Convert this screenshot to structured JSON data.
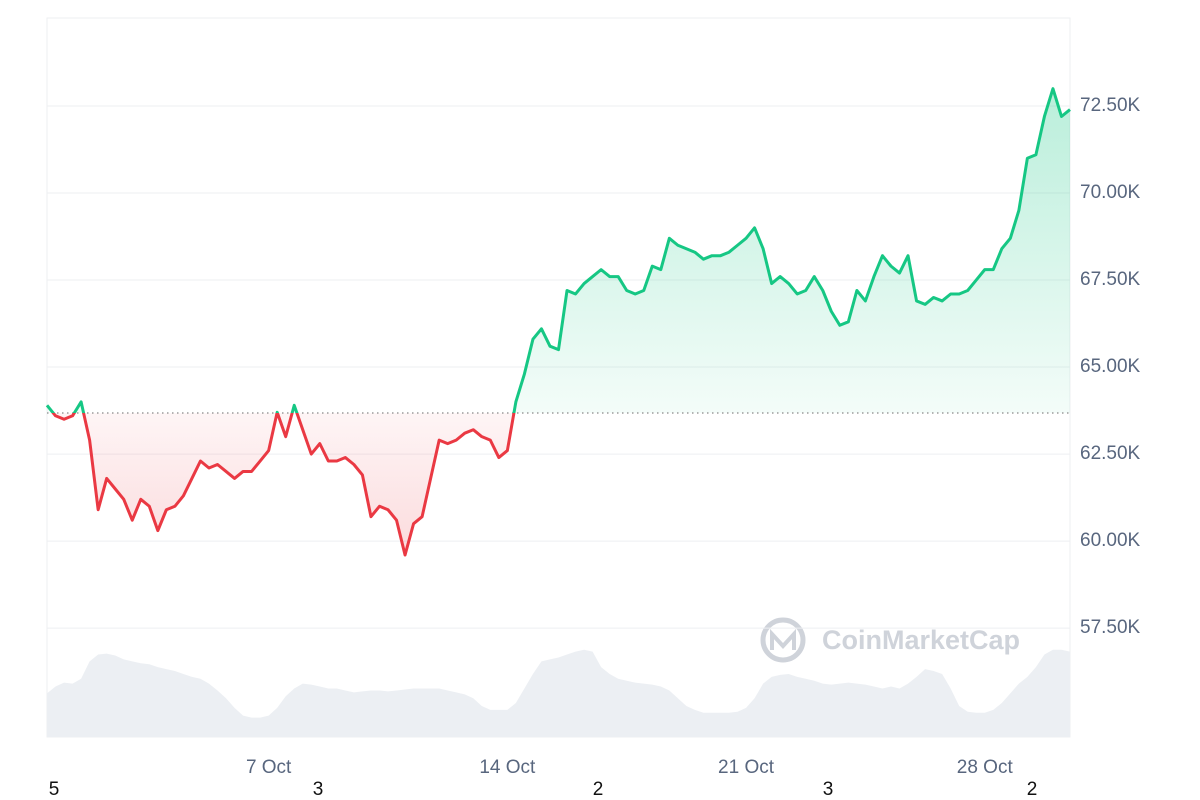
{
  "chart_data": {
    "type": "line",
    "categories": [
      null,
      null,
      null,
      null,
      null,
      null,
      null,
      null,
      null,
      null,
      null,
      null,
      null,
      null,
      null,
      null,
      null,
      null,
      null,
      null,
      null,
      null,
      null,
      null,
      null,
      null,
      "7 Oct",
      null,
      null,
      null,
      null,
      null,
      null,
      null,
      null,
      null,
      null,
      null,
      null,
      null,
      null,
      null,
      null,
      null,
      null,
      null,
      null,
      null,
      null,
      null,
      null,
      null,
      null,
      null,
      "14 Oct",
      null,
      null,
      null,
      null,
      null,
      null,
      null,
      null,
      null,
      null,
      null,
      null,
      null,
      null,
      null,
      null,
      null,
      null,
      null,
      null,
      null,
      null,
      null,
      null,
      null,
      null,
      null,
      "21 Oct",
      null,
      null,
      null,
      null,
      null,
      null,
      null,
      null,
      null,
      null,
      null,
      null,
      null,
      null,
      null,
      null,
      null,
      null,
      null,
      null,
      null,
      null,
      null,
      null,
      null,
      null,
      null,
      "28 Oct",
      null,
      null,
      null,
      null,
      null,
      null,
      null,
      null,
      null,
      null
    ],
    "series": [
      {
        "values": [
          63900,
          63600,
          63500,
          63600,
          64000,
          62900,
          60900,
          61800,
          61500,
          61200,
          60600,
          61200,
          61000,
          60300,
          60900,
          61000,
          61300,
          61800,
          62300,
          62100,
          62200,
          62000,
          61800,
          62000,
          62000,
          62300,
          62600,
          63700,
          63000,
          63900,
          63200,
          62500,
          62800,
          62300,
          62300,
          62400,
          62200,
          61900,
          60700,
          61000,
          60900,
          60600,
          59600,
          60500,
          60700,
          61800,
          62900,
          62800,
          62900,
          63100,
          63200,
          63000,
          62900,
          62400,
          62600,
          64000,
          64800,
          65800,
          66100,
          65600,
          65500,
          67200,
          67100,
          67400,
          67600,
          67800,
          67600,
          67600,
          67200,
          67100,
          67200,
          67900,
          67800,
          68700,
          68500,
          68400,
          68300,
          68100,
          68200,
          68200,
          68300,
          68500,
          68700,
          69000,
          68400,
          67400,
          67600,
          67400,
          67100,
          67200,
          67600,
          67200,
          66600,
          66200,
          66300,
          67200,
          66900,
          67600,
          68200,
          67900,
          67700,
          68200,
          66900,
          66800,
          67000,
          66900,
          67100,
          67100,
          67200,
          67500,
          67800,
          67800,
          68400,
          68700,
          69500,
          71000,
          71100,
          72200,
          73000,
          72200,
          72400
        ]
      }
    ],
    "baseline": 63680,
    "up_color": "#16c784",
    "down_color": "#ea3943",
    "volume": {
      "color": "#eceff3",
      "ylim": [
        0,
        100
      ],
      "values": [
        45,
        52,
        56,
        55,
        60,
        78,
        85,
        86,
        84,
        80,
        78,
        76,
        75,
        72,
        70,
        68,
        65,
        62,
        60,
        55,
        48,
        40,
        30,
        22,
        20,
        20,
        22,
        30,
        42,
        50,
        55,
        54,
        52,
        50,
        50,
        48,
        46,
        47,
        48,
        48,
        47,
        48,
        49,
        50,
        50,
        50,
        50,
        48,
        46,
        44,
        40,
        32,
        28,
        28,
        28,
        35,
        50,
        65,
        78,
        80,
        82,
        85,
        88,
        90,
        88,
        72,
        65,
        60,
        58,
        56,
        55,
        54,
        52,
        48,
        40,
        32,
        28,
        25,
        25,
        25,
        25,
        26,
        30,
        40,
        55,
        62,
        64,
        65,
        62,
        60,
        58,
        55,
        54,
        55,
        56,
        55,
        54,
        52,
        50,
        52,
        50,
        55,
        62,
        70,
        68,
        65,
        50,
        32,
        26,
        25,
        25,
        28,
        35,
        45,
        55,
        62,
        72,
        85,
        90,
        90,
        88
      ]
    },
    "ylim": [
      54370,
      75030
    ],
    "yticks": [
      {
        "value": 57500,
        "label": "57.50K"
      },
      {
        "value": 60000,
        "label": "60.00K"
      },
      {
        "value": 62500,
        "label": "62.50K"
      },
      {
        "value": 65000,
        "label": "65.00K"
      },
      {
        "value": 67500,
        "label": "67.50K"
      },
      {
        "value": 70000,
        "label": "70.00K"
      },
      {
        "value": 72500,
        "label": "72.50K"
      }
    ],
    "grid": true,
    "watermark": "CoinMarketCap",
    "footer_labels": [
      "5",
      "3",
      "2",
      "3",
      "2"
    ]
  }
}
